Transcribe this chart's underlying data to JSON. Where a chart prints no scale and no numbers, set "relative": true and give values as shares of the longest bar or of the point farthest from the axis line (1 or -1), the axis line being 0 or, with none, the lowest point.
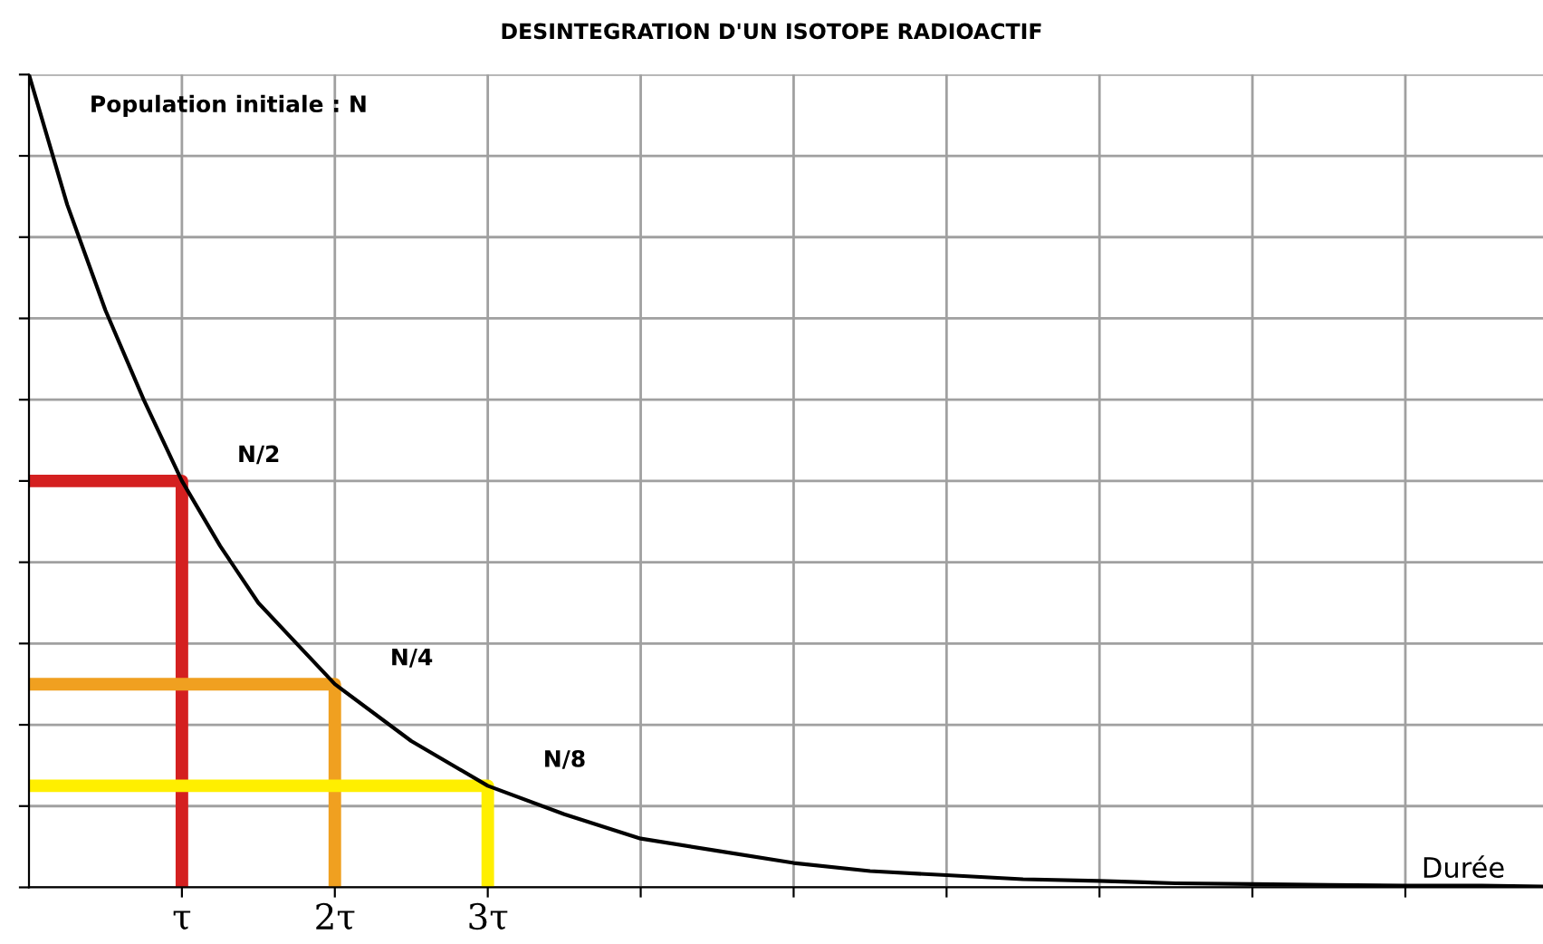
{
  "chart_data": {
    "type": "line",
    "title": "DESINTEGRATION D'UN ISOTOPE RADIOACTIF",
    "xlabel": "Durée",
    "relative": true,
    "grid": true,
    "xlim": [
      0,
      9.9
    ],
    "xticks": [
      {
        "value": 1,
        "label": "τ"
      },
      {
        "value": 2,
        "label": "2τ"
      },
      {
        "value": 3,
        "label": "3τ"
      },
      {
        "value": 4,
        "label": null
      },
      {
        "value": 5,
        "label": null
      },
      {
        "value": 6,
        "label": null
      },
      {
        "value": 7,
        "label": null
      },
      {
        "value": 8,
        "label": null
      },
      {
        "value": 9,
        "label": null
      }
    ],
    "series": [
      {
        "color": "#000000",
        "x": [
          0,
          0.25,
          0.5,
          0.75,
          1,
          1.25,
          1.5,
          1.75,
          2,
          2.5,
          3,
          3.5,
          4,
          4.5,
          5,
          5.5,
          6,
          6.5,
          7,
          7.5,
          8,
          8.5,
          9,
          9.5,
          9.9
        ],
        "values": [
          1,
          0.84,
          0.71,
          0.6,
          0.5,
          0.42,
          0.35,
          0.3,
          0.25,
          0.18,
          0.125,
          0.09,
          0.06,
          0.045,
          0.03,
          0.02,
          0.015,
          0.01,
          0.008,
          0.005,
          0.004,
          0.003,
          0.002,
          0.002,
          0.001
        ]
      },
      {
        "color": "#d42020",
        "x": [
          0,
          1,
          1
        ],
        "values": [
          0.5,
          0.5,
          0
        ]
      },
      {
        "color": "#f0a020",
        "x": [
          0,
          2,
          2
        ],
        "values": [
          0.25,
          0.25,
          0
        ]
      },
      {
        "color": "#ffef00",
        "x": [
          0,
          3,
          3
        ],
        "values": [
          0.125,
          0.125,
          0
        ]
      }
    ],
    "annotations": [
      "Population initiale : N",
      {
        "text": "N/2",
        "x": 1,
        "y": 0.5
      },
      {
        "text": "N/4",
        "x": 2,
        "y": 0.25
      },
      {
        "text": "N/8",
        "x": 3,
        "y": 0.125
      }
    ]
  }
}
